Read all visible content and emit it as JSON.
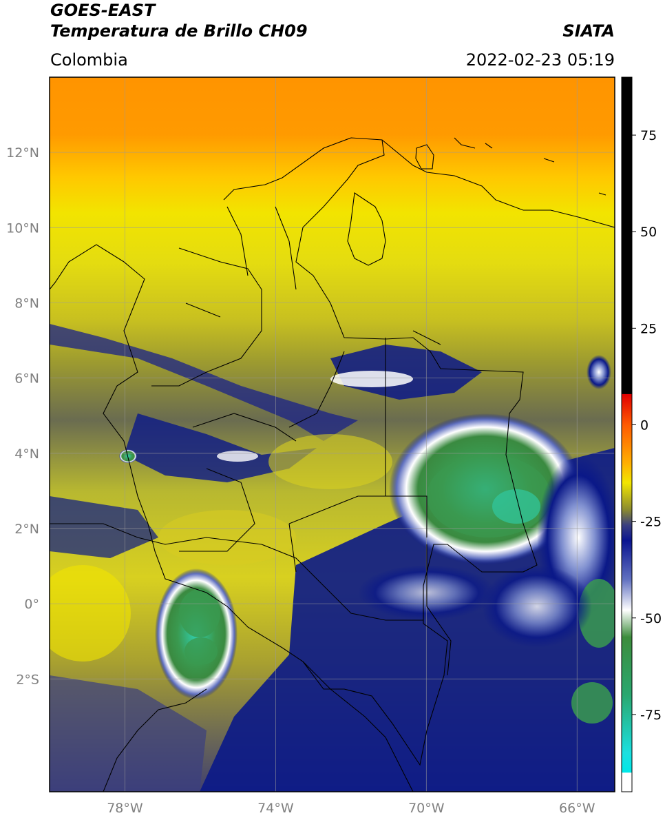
{
  "header": {
    "satellite": "GOES-EAST",
    "product": "Temperatura de Brillo CH09",
    "source": "SIATA",
    "region": "Colombia",
    "timestamp": "2022-02-23 05:19"
  },
  "map": {
    "lon_range": [
      -80,
      -65
    ],
    "lat_range": [
      -5,
      14
    ],
    "lon_ticks": [
      {
        "value": -78,
        "label": "78°W"
      },
      {
        "value": -74,
        "label": "74°W"
      },
      {
        "value": -70,
        "label": "70°W"
      },
      {
        "value": -66,
        "label": "66°W"
      }
    ],
    "lat_ticks": [
      {
        "value": 12,
        "label": "12°N"
      },
      {
        "value": 10,
        "label": "10°N"
      },
      {
        "value": 8,
        "label": "8°N"
      },
      {
        "value": 6,
        "label": "6°N"
      },
      {
        "value": 4,
        "label": "4°N"
      },
      {
        "value": 2,
        "label": "2°N"
      },
      {
        "value": 0,
        "label": "0°"
      },
      {
        "value": -2,
        "label": "2°S"
      }
    ],
    "gridlines": true
  },
  "colorbar": {
    "range": [
      -95,
      90
    ],
    "ticks": [
      {
        "value": 75,
        "label": "75"
      },
      {
        "value": 50,
        "label": "50"
      },
      {
        "value": 25,
        "label": "25"
      },
      {
        "value": 0,
        "label": "0"
      },
      {
        "value": -25,
        "label": "-25"
      },
      {
        "value": -50,
        "label": "-50"
      },
      {
        "value": -75,
        "label": "-75"
      }
    ],
    "stops": [
      {
        "value": 90,
        "color": "#000000"
      },
      {
        "value": 8,
        "color": "#000000"
      },
      {
        "value": 7.9,
        "color": "#e00000"
      },
      {
        "value": 0,
        "color": "#ff5a00"
      },
      {
        "value": -10,
        "color": "#ffb000"
      },
      {
        "value": -15,
        "color": "#f2e600"
      },
      {
        "value": -22,
        "color": "#8a8a30"
      },
      {
        "value": -26,
        "color": "#3a3f80"
      },
      {
        "value": -30,
        "color": "#0a1490"
      },
      {
        "value": -40,
        "color": "#6070c0"
      },
      {
        "value": -48,
        "color": "#ffffff"
      },
      {
        "value": -55,
        "color": "#3c8c3c"
      },
      {
        "value": -70,
        "color": "#2aa870"
      },
      {
        "value": -85,
        "color": "#1ce0e0"
      },
      {
        "value": -90,
        "color": "#00e8e8"
      },
      {
        "value": -90.1,
        "color": "#ffffff"
      },
      {
        "value": -95,
        "color": "#ffffff"
      }
    ]
  },
  "colors": {
    "orange": "#ff9a00",
    "yellow": "#f0e000",
    "olive": "#a8a830",
    "navy": "#0a1888",
    "white": "#ffffff",
    "green": "#3a9a50",
    "teal": "#30c8a0",
    "border": "#000000",
    "grid": "#9a9a9a"
  }
}
